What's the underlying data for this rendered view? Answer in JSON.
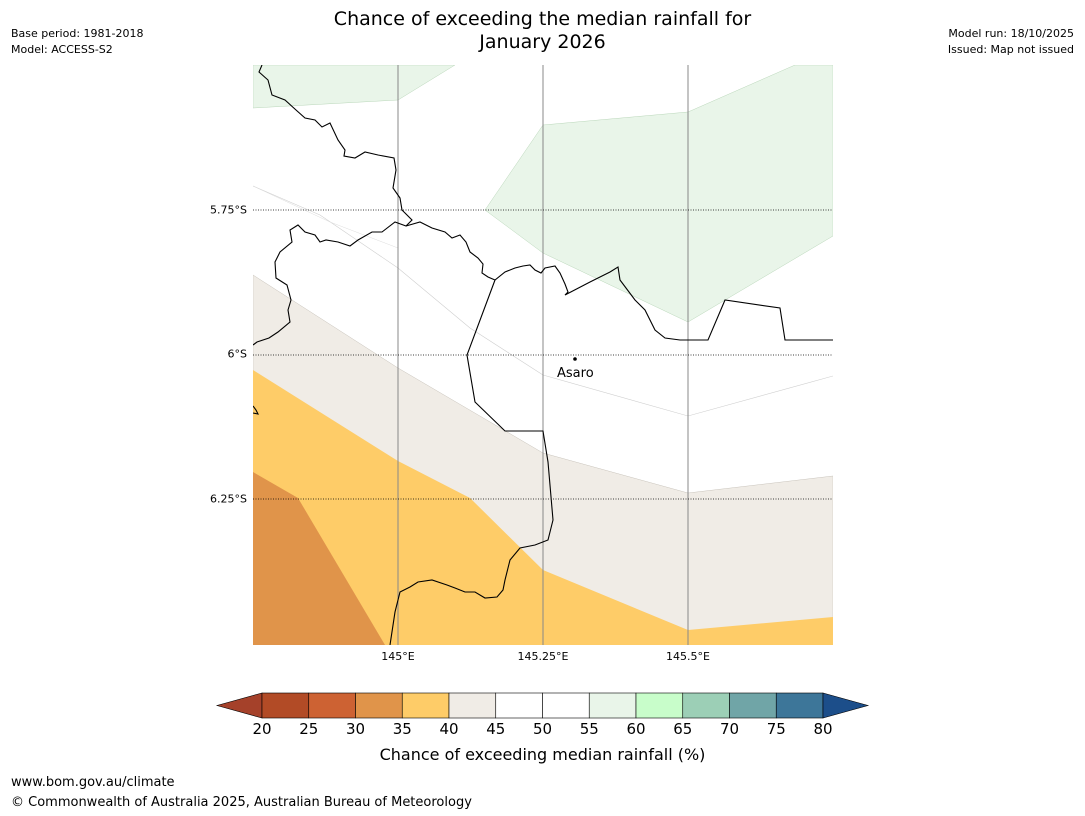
{
  "header": {
    "title_line1": "Chance of exceeding the median rainfall for",
    "title_line2": "January 2026",
    "base_period": "Base period: 1981-2018",
    "model": "Model: ACCESS-S2",
    "model_run": "Model run: 18/10/2025",
    "issued": "Issued: Map not issued"
  },
  "map": {
    "latitude_labels": [
      "5.75°S",
      "6°S",
      "6.25°S"
    ],
    "longitude_labels": [
      "145°E",
      "145.25°E",
      "145.5°E"
    ],
    "place_name": "Asaro"
  },
  "colorbar": {
    "ticks": [
      "20",
      "25",
      "30",
      "35",
      "40",
      "45",
      "50",
      "55",
      "60",
      "65",
      "70",
      "75",
      "80"
    ],
    "label": "Chance of exceeding median rainfall (%)",
    "colors": [
      "#a5412a",
      "#b24b26",
      "#cd6233",
      "#e0944a",
      "#fecc68",
      "#f0ece6",
      "#ffffff",
      "#ffffff",
      "#e9f5e9",
      "#c8fdca",
      "#9ccfb6",
      "#70a5a7",
      "#3d7699",
      "#1c4e8a"
    ]
  },
  "footer": {
    "url": "www.bom.gov.au/climate",
    "copyright": "© Commonwealth of Australia 2025, Australian Bureau of Meteorology"
  }
}
